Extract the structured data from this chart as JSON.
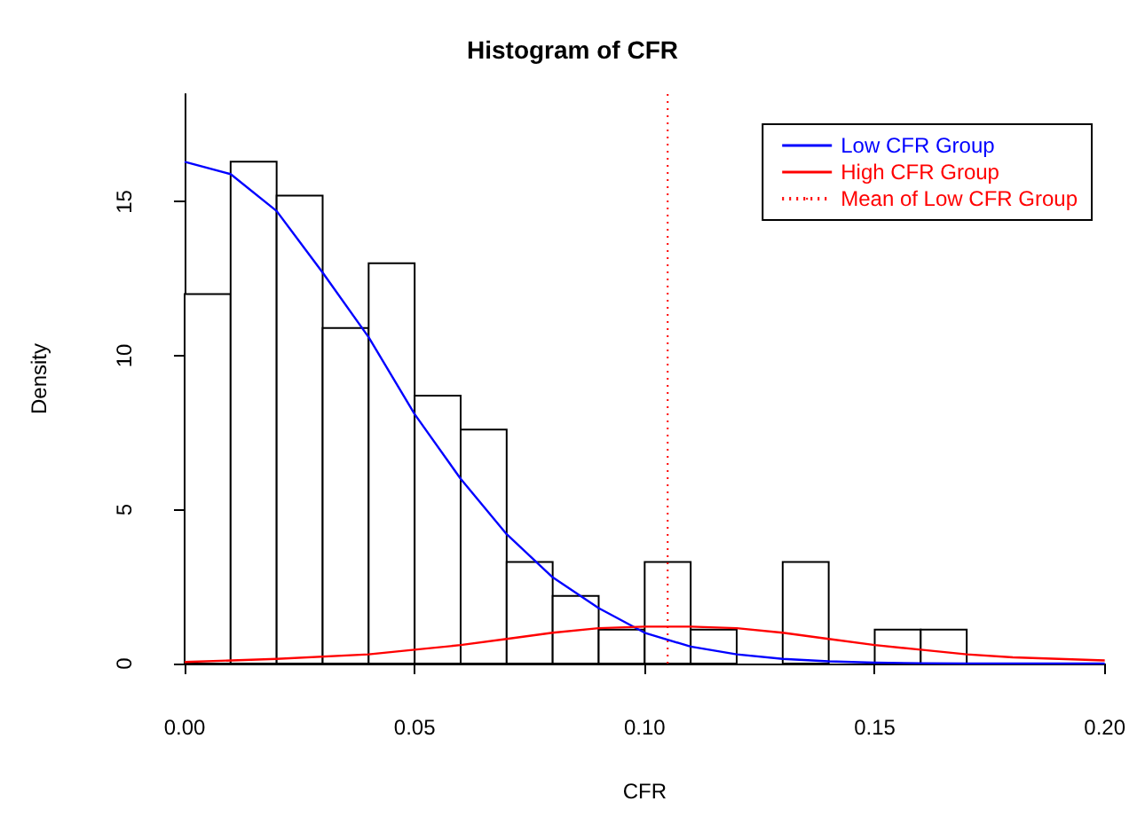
{
  "chart_data": {
    "type": "histogram",
    "title": "Histogram of CFR",
    "xlabel": "CFR",
    "ylabel": "Density",
    "bins": [
      0,
      0.01,
      0.02,
      0.03,
      0.04,
      0.05,
      0.06,
      0.07,
      0.08,
      0.09,
      0.1,
      0.11,
      0.12,
      0.13,
      0.14,
      0.15,
      0.16,
      0.17
    ],
    "values": [
      12.0,
      16.3,
      15.2,
      10.9,
      13.0,
      8.7,
      7.6,
      3.3,
      2.2,
      1.1,
      3.3,
      1.1,
      0,
      3.3,
      0,
      1.1,
      1.1
    ],
    "color": "#ffffff",
    "series": [
      {
        "type": "line",
        "name": "Low CFR Group",
        "color": "#0000ff",
        "x": [
          0,
          0.01,
          0.02,
          0.03,
          0.04,
          0.05,
          0.06,
          0.07,
          0.08,
          0.09,
          0.1,
          0.11,
          0.12,
          0.13,
          0.14,
          0.15,
          0.16,
          0.17,
          0.18,
          0.19,
          0.2
        ],
        "values": [
          16.3,
          15.9,
          14.7,
          12.7,
          10.6,
          8.1,
          6.0,
          4.2,
          2.8,
          1.8,
          1.0,
          0.55,
          0.3,
          0.15,
          0.07,
          0.03,
          0.01,
          0,
          0,
          0,
          0
        ]
      },
      {
        "type": "line",
        "name": "High CFR Group",
        "color": "#ff0000",
        "x": [
          0,
          0.02,
          0.04,
          0.05,
          0.06,
          0.07,
          0.08,
          0.09,
          0.1,
          0.11,
          0.12,
          0.13,
          0.14,
          0.15,
          0.16,
          0.17,
          0.18,
          0.19,
          0.2
        ],
        "values": [
          0.05,
          0.15,
          0.3,
          0.45,
          0.6,
          0.8,
          1.0,
          1.15,
          1.2,
          1.2,
          1.15,
          1.0,
          0.8,
          0.6,
          0.45,
          0.3,
          0.2,
          0.15,
          0.1
        ]
      }
    ],
    "ref_lines": [
      {
        "axis": "x",
        "value": 0.105,
        "label": "Mean of Low CFR Group",
        "color": "#ff0000",
        "line_style": "dotted"
      }
    ],
    "xlim": [
      0,
      0.2
    ],
    "xticks": [
      {
        "value": 0,
        "label": "0.00"
      },
      {
        "value": 0.05,
        "label": "0.05"
      },
      {
        "value": 0.1,
        "label": "0.10"
      },
      {
        "value": 0.15,
        "label": "0.15"
      },
      {
        "value": 0.2,
        "label": "0.20"
      }
    ],
    "ylim": [
      0,
      18.5
    ],
    "yticks": [
      0,
      5,
      10,
      15
    ],
    "grid": false,
    "legend": "top right",
    "marker": "none",
    "line_style": "solid"
  }
}
